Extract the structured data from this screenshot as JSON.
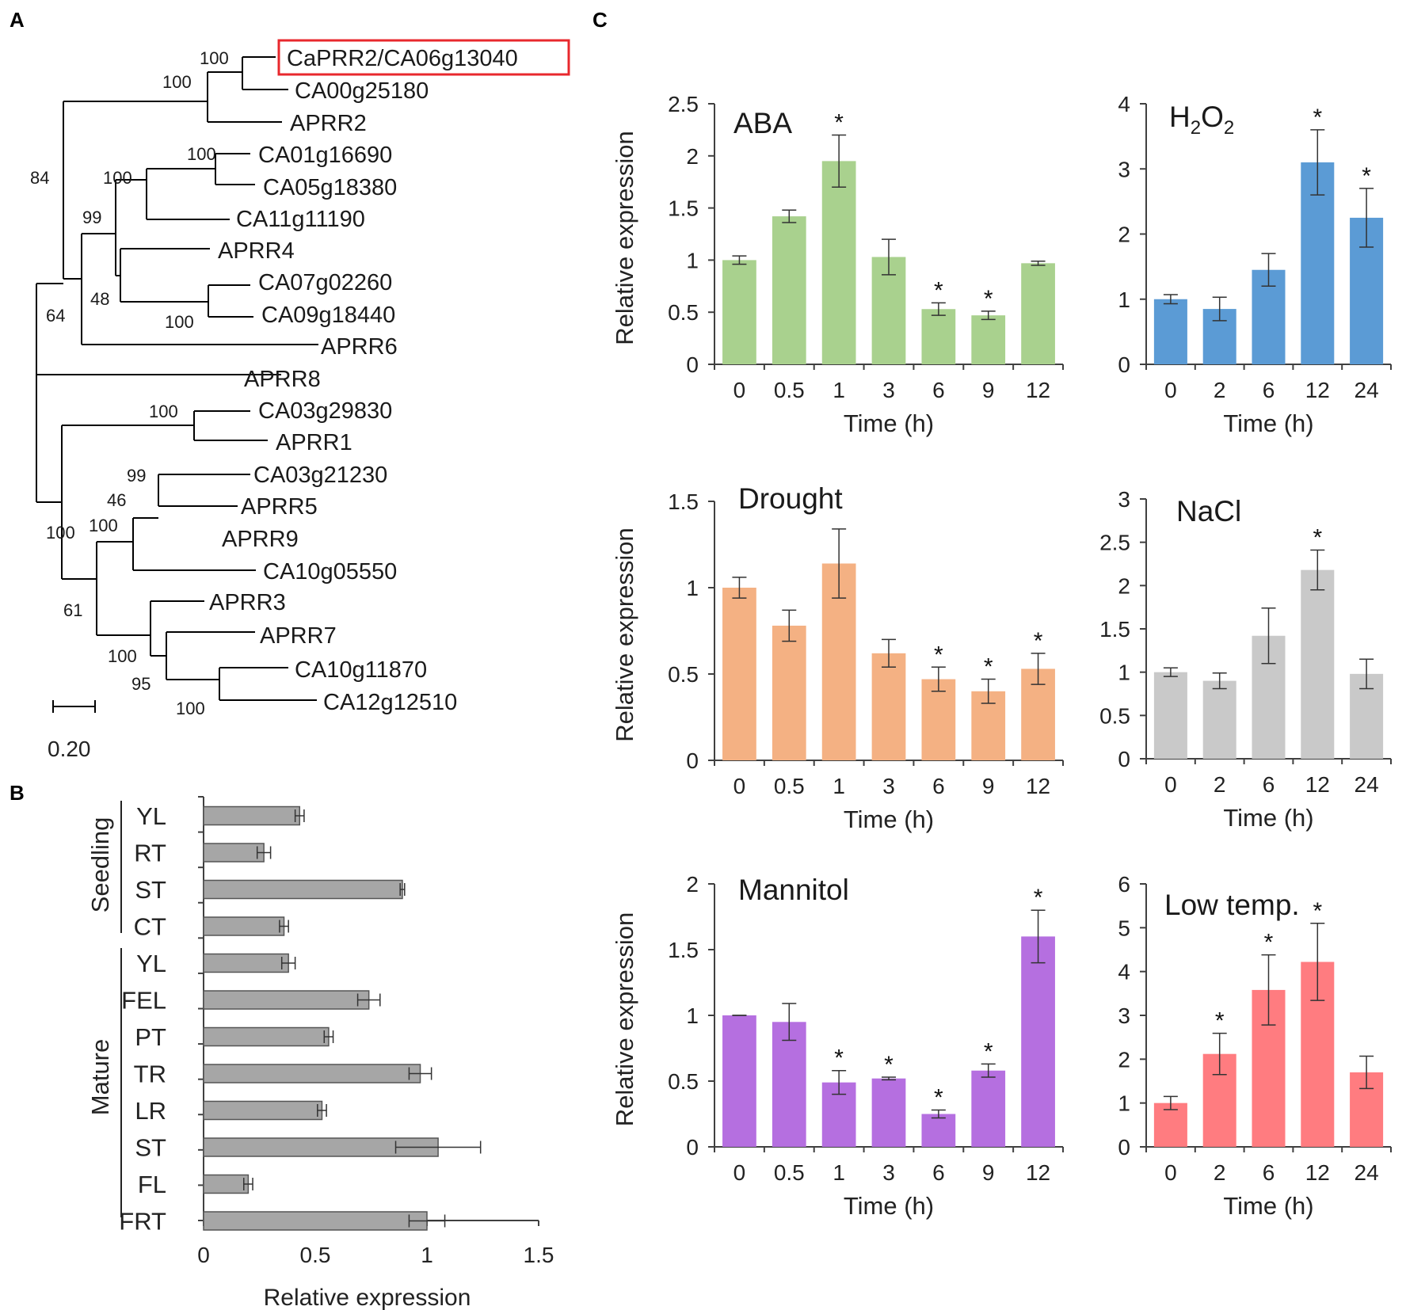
{
  "panel_labels": {
    "a": "A",
    "b": "B",
    "c": "C"
  },
  "colors": {
    "axis": "#404040",
    "highlight": "#e8282d",
    "panel_b_bar": "#a6a6a6",
    "ABA": "#a9d18e",
    "H2O2": "#5b9bd5",
    "Drought": "#f4b183",
    "NaCl": "#c9c9c9",
    "Mannitol": "#b56fe0",
    "Low temp.": "#ff7c80"
  },
  "tree": {
    "leaves": [
      "CaPRR2/CA06g13040",
      "CA00g25180",
      "APRR2",
      "CA01g16690",
      "CA05g18380",
      "CA11g11190",
      "APRR4",
      "CA07g02260",
      "CA09g18440",
      "APRR6",
      "APRR8",
      "CA03g29830",
      "APRR1",
      "CA03g21230",
      "APRR5",
      "APRR9",
      "CA10g05550",
      "APRR3",
      "APRR7",
      "CA10g11870",
      "CA12g12510"
    ],
    "highlighted_leaf": "CaPRR2/CA06g13040",
    "bootstrap": [
      "100",
      "100",
      "84",
      "100",
      "100",
      "99",
      "48",
      "100",
      "64",
      "100",
      "99",
      "46",
      "100",
      "100",
      "61",
      "100",
      "95",
      "100"
    ],
    "scale_label": "0.20"
  },
  "chart_data": [
    {
      "panel": "B",
      "type": "bar",
      "orientation": "horizontal",
      "groups": [
        {
          "name": "Seedling",
          "categories": [
            "YL",
            "RT",
            "ST",
            "CT"
          ]
        },
        {
          "name": "Mature",
          "categories": [
            "YL",
            "FEL",
            "PT",
            "TR",
            "LR",
            "ST",
            "FL",
            "FRT"
          ]
        }
      ],
      "categories": [
        "YL",
        "RT",
        "ST",
        "CT",
        "YL",
        "FEL",
        "PT",
        "TR",
        "LR",
        "ST",
        "FL",
        "FRT"
      ],
      "values": [
        0.43,
        0.27,
        0.89,
        0.36,
        0.38,
        0.74,
        0.56,
        0.97,
        0.53,
        1.05,
        0.2,
        1.0
      ],
      "errors": [
        0.02,
        0.03,
        0.01,
        0.02,
        0.03,
        0.05,
        0.02,
        0.05,
        0.02,
        0.19,
        0.02,
        0.08
      ],
      "xlabel": "Relative expression",
      "xlim": [
        0,
        1.5
      ],
      "xticks": [
        "0",
        "0.5",
        "1",
        "1.5"
      ]
    },
    {
      "panel": "C",
      "type": "bar",
      "title": "ABA",
      "color_key": "ABA",
      "categories": [
        "0",
        "0.5",
        "1",
        "3",
        "6",
        "9",
        "12"
      ],
      "values": [
        1.0,
        1.42,
        1.95,
        1.03,
        0.53,
        0.47,
        0.97
      ],
      "errors": [
        0.04,
        0.06,
        0.25,
        0.17,
        0.06,
        0.04,
        0.02
      ],
      "significant": [
        false,
        false,
        true,
        false,
        true,
        true,
        false
      ],
      "ylim": [
        0,
        2.5
      ],
      "yticks": [
        "0",
        "0.5",
        "1",
        "1.5",
        "2",
        "2.5"
      ],
      "xlabel": "Time (h)",
      "ylabel": "Relative expression"
    },
    {
      "panel": "C",
      "type": "bar",
      "title": "H2O2",
      "color_key": "H2O2",
      "categories": [
        "0",
        "2",
        "6",
        "12",
        "24"
      ],
      "values": [
        1.0,
        0.85,
        1.45,
        3.1,
        2.25
      ],
      "errors": [
        0.07,
        0.18,
        0.25,
        0.5,
        0.45
      ],
      "significant": [
        false,
        false,
        false,
        true,
        true
      ],
      "ylim": [
        0,
        4
      ],
      "yticks": [
        "0",
        "1",
        "2",
        "3",
        "4"
      ],
      "xlabel": "Time (h)",
      "ylabel": ""
    },
    {
      "panel": "C",
      "type": "bar",
      "title": "Drought",
      "color_key": "Drought",
      "categories": [
        "0",
        "0.5",
        "1",
        "3",
        "6",
        "9",
        "12"
      ],
      "values": [
        1.0,
        0.78,
        1.14,
        0.62,
        0.47,
        0.4,
        0.53
      ],
      "errors": [
        0.06,
        0.09,
        0.2,
        0.08,
        0.07,
        0.07,
        0.09
      ],
      "significant": [
        false,
        false,
        false,
        false,
        true,
        true,
        true
      ],
      "ylim": [
        0,
        1.5
      ],
      "yticks": [
        "0",
        "0.5",
        "1",
        "1.5"
      ],
      "xlabel": "Time (h)",
      "ylabel": "Relative expression"
    },
    {
      "panel": "C",
      "type": "bar",
      "title": "NaCl",
      "color_key": "NaCl",
      "categories": [
        "0",
        "2",
        "6",
        "12",
        "24"
      ],
      "values": [
        1.0,
        0.9,
        1.42,
        2.18,
        0.98
      ],
      "errors": [
        0.05,
        0.09,
        0.32,
        0.23,
        0.17
      ],
      "significant": [
        false,
        false,
        false,
        true,
        false
      ],
      "ylim": [
        0,
        3
      ],
      "yticks": [
        "0",
        "0.5",
        "1",
        "1.5",
        "2",
        "2.5",
        "3"
      ],
      "xlabel": "Time (h)",
      "ylabel": ""
    },
    {
      "panel": "C",
      "type": "bar",
      "title": "Mannitol",
      "color_key": "Mannitol",
      "categories": [
        "0",
        "0.5",
        "1",
        "3",
        "6",
        "9",
        "12"
      ],
      "values": [
        1.0,
        0.95,
        0.49,
        0.52,
        0.25,
        0.58,
        1.6
      ],
      "errors": [
        0.0,
        0.14,
        0.09,
        0.01,
        0.03,
        0.05,
        0.2
      ],
      "significant": [
        false,
        false,
        true,
        true,
        true,
        true,
        true
      ],
      "ylim": [
        0,
        2
      ],
      "yticks": [
        "0",
        "0.5",
        "1",
        "1.5",
        "2"
      ],
      "xlabel": "Time (h)",
      "ylabel": "Relative expression"
    },
    {
      "panel": "C",
      "type": "bar",
      "title": "Low temp.",
      "color_key": "Low temp.",
      "categories": [
        "0",
        "2",
        "6",
        "12",
        "24"
      ],
      "values": [
        1.0,
        2.12,
        3.58,
        4.22,
        1.7
      ],
      "errors": [
        0.15,
        0.47,
        0.8,
        0.88,
        0.37
      ],
      "significant": [
        false,
        true,
        true,
        true,
        false
      ],
      "ylim": [
        0,
        6
      ],
      "yticks": [
        "0",
        "1",
        "2",
        "3",
        "4",
        "5",
        "6"
      ],
      "xlabel": "Time (h)",
      "ylabel": ""
    }
  ]
}
